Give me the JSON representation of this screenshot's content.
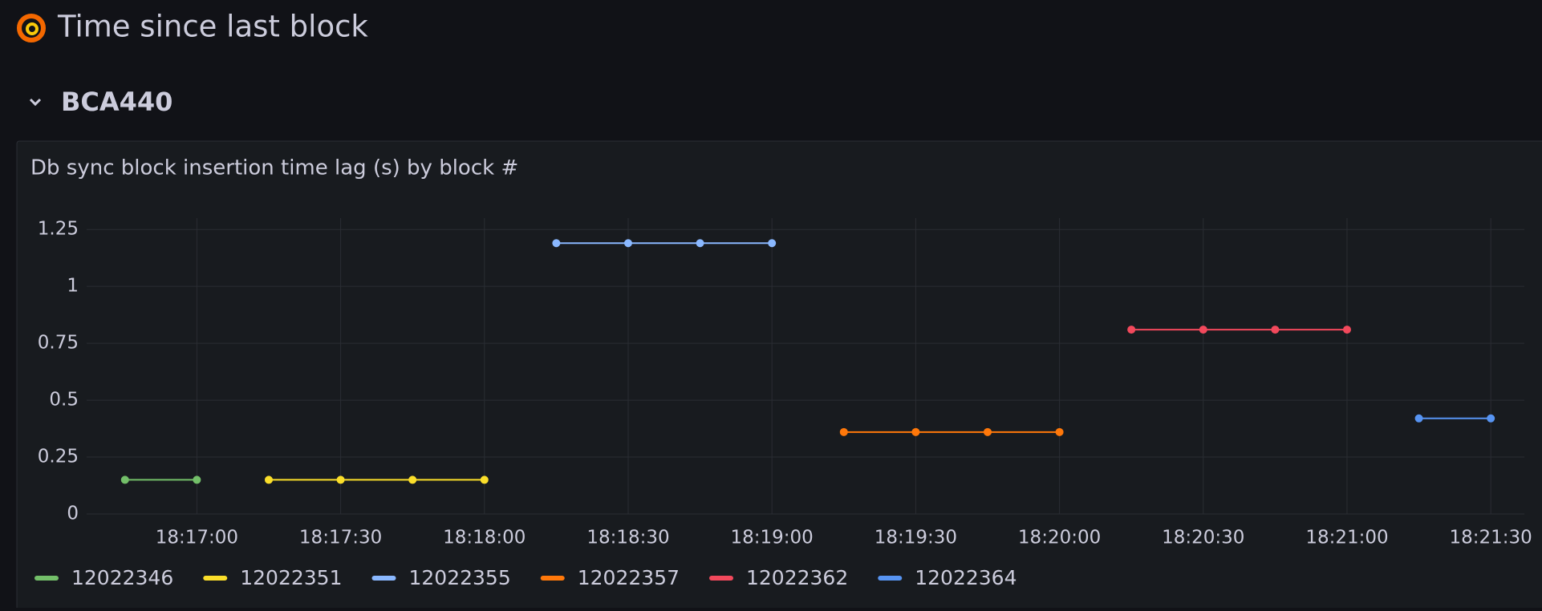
{
  "header": {
    "title": "Time since last block",
    "row": "BCA440"
  },
  "chart_data": {
    "type": "line",
    "title": "Db sync block insertion time lag (s) by block #",
    "x": [
      "18:16:45",
      "18:17:00",
      "18:17:15",
      "18:17:30",
      "18:17:45",
      "18:18:00",
      "18:18:15",
      "18:18:30",
      "18:18:45",
      "18:19:00",
      "18:19:15",
      "18:19:30",
      "18:19:45",
      "18:20:00",
      "18:20:15",
      "18:20:30",
      "18:20:45",
      "18:21:00",
      "18:21:15",
      "18:21:30"
    ],
    "series": [
      {
        "name": "12022346",
        "color": "#73bf69",
        "values": [
          0.15,
          0.15,
          null,
          null,
          null,
          null,
          null,
          null,
          null,
          null,
          null,
          null,
          null,
          null,
          null,
          null,
          null,
          null,
          null,
          null
        ]
      },
      {
        "name": "12022351",
        "color": "#fade2a",
        "values": [
          null,
          null,
          0.15,
          0.15,
          0.15,
          0.15,
          null,
          null,
          null,
          null,
          null,
          null,
          null,
          null,
          null,
          null,
          null,
          null,
          null,
          null
        ]
      },
      {
        "name": "12022355",
        "color": "#8ab8ff",
        "values": [
          null,
          null,
          null,
          null,
          null,
          null,
          1.19,
          1.19,
          1.19,
          1.19,
          null,
          null,
          null,
          null,
          null,
          null,
          null,
          null,
          null,
          null
        ]
      },
      {
        "name": "12022357",
        "color": "#ff780a",
        "values": [
          null,
          null,
          null,
          null,
          null,
          null,
          null,
          null,
          null,
          null,
          0.36,
          0.36,
          0.36,
          0.36,
          null,
          null,
          null,
          null,
          null,
          null
        ]
      },
      {
        "name": "12022362",
        "color": "#f2495c",
        "values": [
          null,
          null,
          null,
          null,
          null,
          null,
          null,
          null,
          null,
          null,
          null,
          null,
          null,
          null,
          0.81,
          0.81,
          0.81,
          0.81,
          null,
          null
        ]
      },
      {
        "name": "12022364",
        "color": "#5794f2",
        "values": [
          null,
          null,
          null,
          null,
          null,
          null,
          null,
          null,
          null,
          null,
          null,
          null,
          null,
          null,
          null,
          null,
          null,
          null,
          0.42,
          0.42
        ]
      }
    ],
    "xlim": [
      "18:16:37",
      "18:21:37"
    ],
    "xticks": [
      "18:17:00",
      "18:17:30",
      "18:18:00",
      "18:18:30",
      "18:19:00",
      "18:19:30",
      "18:20:00",
      "18:20:30",
      "18:21:00",
      "18:21:30"
    ],
    "ylim": [
      0,
      1.3
    ],
    "yticks": [
      0,
      0.25,
      0.5,
      0.75,
      1,
      1.25
    ],
    "grid": true,
    "legend": "bottom"
  }
}
